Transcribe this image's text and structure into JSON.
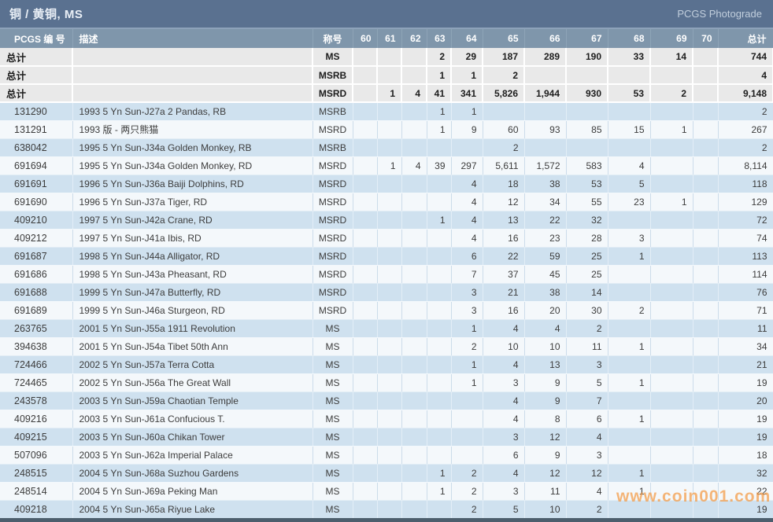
{
  "title_bar": {
    "title": "铜 / 黄铜, MS",
    "right_link": "PCGS Photograde"
  },
  "watermark": "www.coin001.com",
  "table": {
    "columns": [
      "PCGS 编 号",
      "描述",
      "称号",
      "60",
      "61",
      "62",
      "63",
      "64",
      "65",
      "66",
      "67",
      "68",
      "69",
      "70",
      "总计"
    ],
    "summary_rows": [
      {
        "label": "总计",
        "desc": "",
        "designation": "MS",
        "values": [
          "",
          "",
          "",
          "2",
          "29",
          "187",
          "289",
          "190",
          "33",
          "14",
          ""
        ],
        "total": "744"
      },
      {
        "label": "总计",
        "desc": "",
        "designation": "MSRB",
        "values": [
          "",
          "",
          "",
          "1",
          "1",
          "2",
          "",
          "",
          "",
          "",
          ""
        ],
        "total": "4"
      },
      {
        "label": "总计",
        "desc": "",
        "designation": "MSRD",
        "values": [
          "",
          "1",
          "4",
          "41",
          "341",
          "5,826",
          "1,944",
          "930",
          "53",
          "2",
          ""
        ],
        "total": "9,148"
      }
    ],
    "rows": [
      {
        "id": "131290",
        "desc": "1993 5 Yn Sun-J27a 2 Pandas, RB",
        "designation": "MSRB",
        "values": [
          "",
          "",
          "",
          "1",
          "1",
          "",
          "",
          "",
          "",
          "",
          ""
        ],
        "total": "2"
      },
      {
        "id": "131291",
        "desc": "1993 版 - 两只熊猫",
        "designation": "MSRD",
        "values": [
          "",
          "",
          "",
          "1",
          "9",
          "60",
          "93",
          "85",
          "15",
          "1",
          ""
        ],
        "total": "267"
      },
      {
        "id": "638042",
        "desc": "1995 5 Yn Sun-J34a Golden Monkey, RB",
        "designation": "MSRB",
        "values": [
          "",
          "",
          "",
          "",
          "",
          "2",
          "",
          "",
          "",
          "",
          ""
        ],
        "total": "2"
      },
      {
        "id": "691694",
        "desc": "1995 5 Yn Sun-J34a Golden Monkey, RD",
        "designation": "MSRD",
        "values": [
          "",
          "1",
          "4",
          "39",
          "297",
          "5,611",
          "1,572",
          "583",
          "4",
          "",
          ""
        ],
        "total": "8,114"
      },
      {
        "id": "691691",
        "desc": "1996 5 Yn Sun-J36a Baiji Dolphins, RD",
        "designation": "MSRD",
        "values": [
          "",
          "",
          "",
          "",
          "4",
          "18",
          "38",
          "53",
          "5",
          "",
          ""
        ],
        "total": "118"
      },
      {
        "id": "691690",
        "desc": "1996 5 Yn Sun-J37a Tiger, RD",
        "designation": "MSRD",
        "values": [
          "",
          "",
          "",
          "",
          "4",
          "12",
          "34",
          "55",
          "23",
          "1",
          ""
        ],
        "total": "129"
      },
      {
        "id": "409210",
        "desc": "1997 5 Yn Sun-J42a Crane, RD",
        "designation": "MSRD",
        "values": [
          "",
          "",
          "",
          "1",
          "4",
          "13",
          "22",
          "32",
          "",
          "",
          ""
        ],
        "total": "72"
      },
      {
        "id": "409212",
        "desc": "1997 5 Yn Sun-J41a Ibis, RD",
        "designation": "MSRD",
        "values": [
          "",
          "",
          "",
          "",
          "4",
          "16",
          "23",
          "28",
          "3",
          "",
          ""
        ],
        "total": "74"
      },
      {
        "id": "691687",
        "desc": "1998 5 Yn Sun-J44a Alligator, RD",
        "designation": "MSRD",
        "values": [
          "",
          "",
          "",
          "",
          "6",
          "22",
          "59",
          "25",
          "1",
          "",
          ""
        ],
        "total": "113"
      },
      {
        "id": "691686",
        "desc": "1998 5 Yn Sun-J43a Pheasant, RD",
        "designation": "MSRD",
        "values": [
          "",
          "",
          "",
          "",
          "7",
          "37",
          "45",
          "25",
          "",
          "",
          ""
        ],
        "total": "114"
      },
      {
        "id": "691688",
        "desc": "1999 5 Yn Sun-J47a Butterfly, RD",
        "designation": "MSRD",
        "values": [
          "",
          "",
          "",
          "",
          "3",
          "21",
          "38",
          "14",
          "",
          "",
          ""
        ],
        "total": "76"
      },
      {
        "id": "691689",
        "desc": "1999 5 Yn Sun-J46a Sturgeon, RD",
        "designation": "MSRD",
        "values": [
          "",
          "",
          "",
          "",
          "3",
          "16",
          "20",
          "30",
          "2",
          "",
          ""
        ],
        "total": "71"
      },
      {
        "id": "263765",
        "desc": "2001 5 Yn Sun-J55a 1911 Revolution",
        "designation": "MS",
        "values": [
          "",
          "",
          "",
          "",
          "1",
          "4",
          "4",
          "2",
          "",
          "",
          ""
        ],
        "total": "11"
      },
      {
        "id": "394638",
        "desc": "2001 5 Yn Sun-J54a Tibet 50th Ann",
        "designation": "MS",
        "values": [
          "",
          "",
          "",
          "",
          "2",
          "10",
          "10",
          "11",
          "1",
          "",
          ""
        ],
        "total": "34"
      },
      {
        "id": "724466",
        "desc": "2002 5 Yn Sun-J57a Terra Cotta",
        "designation": "MS",
        "values": [
          "",
          "",
          "",
          "",
          "1",
          "4",
          "13",
          "3",
          "",
          "",
          ""
        ],
        "total": "21"
      },
      {
        "id": "724465",
        "desc": "2002 5 Yn Sun-J56a The Great Wall",
        "designation": "MS",
        "values": [
          "",
          "",
          "",
          "",
          "1",
          "3",
          "9",
          "5",
          "1",
          "",
          ""
        ],
        "total": "19"
      },
      {
        "id": "243578",
        "desc": "2003 5 Yn Sun-J59a Chaotian Temple",
        "designation": "MS",
        "values": [
          "",
          "",
          "",
          "",
          "",
          "4",
          "9",
          "7",
          "",
          "",
          ""
        ],
        "total": "20"
      },
      {
        "id": "409216",
        "desc": "2003 5 Yn Sun-J61a Confucious T.",
        "designation": "MS",
        "values": [
          "",
          "",
          "",
          "",
          "",
          "4",
          "8",
          "6",
          "1",
          "",
          ""
        ],
        "total": "19"
      },
      {
        "id": "409215",
        "desc": "2003 5 Yn Sun-J60a Chikan Tower",
        "designation": "MS",
        "values": [
          "",
          "",
          "",
          "",
          "",
          "3",
          "12",
          "4",
          "",
          "",
          ""
        ],
        "total": "19"
      },
      {
        "id": "507096",
        "desc": "2003 5 Yn Sun-J62a Imperial Palace",
        "designation": "MS",
        "values": [
          "",
          "",
          "",
          "",
          "",
          "6",
          "9",
          "3",
          "",
          "",
          ""
        ],
        "total": "18"
      },
      {
        "id": "248515",
        "desc": "2004 5 Yn Sun-J68a Suzhou Gardens",
        "designation": "MS",
        "values": [
          "",
          "",
          "",
          "1",
          "2",
          "4",
          "12",
          "12",
          "1",
          "",
          ""
        ],
        "total": "32"
      },
      {
        "id": "248514",
        "desc": "2004 5 Yn Sun-J69a Peking Man",
        "designation": "MS",
        "values": [
          "",
          "",
          "",
          "1",
          "2",
          "3",
          "11",
          "4",
          "1",
          "",
          ""
        ],
        "total": "22"
      },
      {
        "id": "409218",
        "desc": "2004 5 Yn Sun-J65a Riyue Lake",
        "designation": "MS",
        "values": [
          "",
          "",
          "",
          "",
          "2",
          "5",
          "10",
          "2",
          "",
          "",
          ""
        ],
        "total": "19"
      }
    ]
  }
}
